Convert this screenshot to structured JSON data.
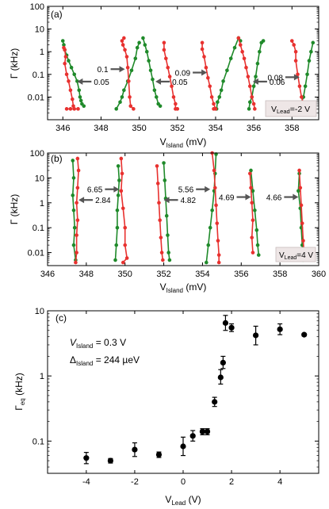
{
  "chart_data": [
    {
      "type": "line",
      "panel_label": "(a)",
      "xlabel_main": "V",
      "xlabel_sub": "Island",
      "xlabel_unit": " (mV)",
      "ylabel": "Γ (kHz)",
      "xlim": [
        345.2,
        359.4
      ],
      "ylim": [
        0.001,
        100
      ],
      "yscale": "log",
      "xticks": [
        346,
        348,
        350,
        352,
        354,
        356,
        358
      ],
      "yticks": [
        {
          "v": 0.01,
          "label": "0.01"
        },
        {
          "v": 0.1,
          "label": "0.1"
        },
        {
          "v": 1,
          "label": "1"
        },
        {
          "v": 10,
          "label": "10"
        },
        {
          "v": 100,
          "label": "100"
        }
      ],
      "legend_box": {
        "main": "V",
        "sub": "Lead",
        "value": "=-2 V"
      },
      "colors": {
        "red": "#e8312f",
        "green": "#1f8a2a"
      },
      "peaks": [
        {
          "red": {
            "x": [
              346.05,
              346.1,
              346.15,
              346.1,
              346.2,
              346.3,
              346.4,
              346.5,
              346.55,
              346.6,
              346.8,
              346.4,
              346.2
            ],
            "y": [
              1.5,
              1.2,
              0.6,
              0.3,
              0.1,
              0.05,
              0.02,
              0.008,
              0.004,
              0.003,
              0.003,
              0.003,
              0.003
            ]
          },
          "green": {
            "x": [
              346.0,
              346.05,
              346.1,
              346.2,
              346.3,
              346.45,
              346.6,
              346.75,
              346.85,
              346.9,
              346.95,
              347.0,
              347.1
            ],
            "y": [
              3,
              2,
              1.2,
              0.7,
              0.4,
              0.2,
              0.1,
              0.05,
              0.02,
              0.01,
              0.007,
              0.005,
              0.004
            ]
          }
        },
        {
          "red": {
            "x": [
              349.2,
              349.1,
              349.15,
              349.25,
              349.35,
              349.4,
              349.45,
              349.5,
              349.55,
              349.7
            ],
            "y": [
              4,
              3,
              2,
              1.2,
              0.6,
              0.2,
              0.05,
              0.01,
              0.004,
              0.003
            ]
          },
          "green": {
            "x": [
              348.8,
              349.0,
              349.1,
              349.2,
              349.4,
              349.6,
              349.8,
              349.9,
              350.0
            ],
            "y": [
              0.003,
              0.006,
              0.01,
              0.02,
              0.05,
              0.15,
              0.5,
              1.5,
              2.5
            ]
          }
        },
        {
          "red": {
            "x": [
              351.3,
              351.3,
              351.4,
              351.5,
              351.6,
              351.7,
              351.8,
              351.9,
              351.9,
              352.0
            ],
            "y": [
              2.5,
              1.2,
              0.5,
              0.2,
              0.08,
              0.03,
              0.01,
              0.005,
              0.003,
              0.003
            ]
          },
          "green": {
            "x": [
              350.2,
              350.3,
              350.4,
              350.5,
              350.6,
              350.7,
              350.8,
              350.9,
              351.0,
              351.1
            ],
            "y": [
              4,
              2,
              1,
              0.4,
              0.15,
              0.06,
              0.02,
              0.01,
              0.005,
              0.004
            ]
          }
        },
        {
          "red": {
            "x": [
              353.3,
              353.3,
              353.4,
              353.5,
              353.6,
              353.7,
              353.8,
              353.9,
              354.0,
              353.9
            ],
            "y": [
              2.5,
              1.3,
              0.6,
              0.2,
              0.07,
              0.03,
              0.01,
              0.005,
              0.003,
              0.003
            ]
          },
          "green": {
            "x": [
              354.05,
              354.1,
              354.2,
              354.3,
              354.4,
              354.6,
              354.8,
              355.0,
              355.2,
              355.3
            ],
            "y": [
              0.003,
              0.006,
              0.01,
              0.02,
              0.05,
              0.15,
              0.5,
              1.5,
              4,
              3
            ]
          }
        },
        {
          "red": {
            "x": [
              355.2,
              355.3,
              355.4,
              355.5,
              355.6,
              355.7,
              355.8,
              355.9,
              356.0,
              356.05
            ],
            "y": [
              4,
              2,
              1,
              0.5,
              0.2,
              0.08,
              0.03,
              0.01,
              0.005,
              0.003
            ]
          },
          "green": {
            "x": [
              355.75,
              355.8,
              355.9,
              356.0,
              356.1,
              356.2,
              356.3,
              356.4,
              356.5
            ],
            "y": [
              0.003,
              0.006,
              0.01,
              0.03,
              0.08,
              0.3,
              1,
              2.5,
              3
            ]
          }
        },
        {
          "red": {
            "x": [
              358.0,
              358.1,
              358.2,
              358.2,
              358.3,
              358.4,
              358.5,
              358.6,
              358.7
            ],
            "y": [
              3,
              2,
              1,
              0.4,
              0.1,
              0.03,
              0.01,
              0.005,
              0.003
            ]
          },
          "green": {
            "x": [
              358.4,
              358.5,
              358.6,
              358.7,
              358.8,
              358.9,
              359.0,
              359.1
            ],
            "y": [
              0.003,
              0.006,
              0.01,
              0.03,
              0.1,
              0.4,
              1,
              2.5
            ]
          }
        }
      ],
      "annotations": [
        {
          "text": "0.05",
          "x": 346.75,
          "y": 0.048,
          "dir": "left"
        },
        {
          "text": "0.1",
          "x": 349.25,
          "y": 0.17,
          "dir": "right"
        },
        {
          "text": "0.05",
          "x": 350.85,
          "y": 0.048,
          "dir": "left"
        },
        {
          "text": "0.09",
          "x": 353.55,
          "y": 0.12,
          "dir": "right"
        },
        {
          "text": "0.06",
          "x": 355.95,
          "y": 0.048,
          "dir": "left"
        },
        {
          "text": "0.08",
          "x": 358.4,
          "y": 0.075,
          "dir": "right"
        }
      ]
    },
    {
      "type": "line",
      "panel_label": "(b)",
      "xlabel_main": "V",
      "xlabel_sub": "Island",
      "xlabel_unit": " (mV)",
      "ylabel": "Γ (kHz)",
      "xlim": [
        346,
        360
      ],
      "ylim": [
        0.003,
        100
      ],
      "yscale": "log",
      "xticks": [
        346,
        348,
        350,
        352,
        354,
        356,
        358,
        360
      ],
      "yticks": [
        {
          "v": 0.01,
          "label": "0.01"
        },
        {
          "v": 0.1,
          "label": "0.1"
        },
        {
          "v": 1,
          "label": "1"
        },
        {
          "v": 10,
          "label": "10"
        },
        {
          "v": 100,
          "label": "100"
        }
      ],
      "legend_box": {
        "main": "V",
        "sub": "Lead",
        "value": "=4 V"
      },
      "colors": {
        "red": "#e8312f",
        "green": "#1f8a2a"
      },
      "peaks": [
        {
          "red": {
            "x": [
              347.45,
              347.5,
              347.5,
              347.55,
              347.5,
              347.55,
              347.6,
              347.55
            ],
            "y": [
              0.004,
              0.01,
              0.05,
              0.2,
              1,
              4,
              20,
              60
            ]
          },
          "green": {
            "x": [
              347.3,
              347.35,
              347.3,
              347.35,
              347.4,
              347.35,
              347.45
            ],
            "y": [
              50,
              10,
              2,
              0.5,
              0.1,
              0.02,
              0.005
            ]
          }
        },
        {
          "red": {
            "x": [
              349.8,
              349.85,
              349.8,
              349.9,
              350.0,
              350.0,
              350.1,
              349.9
            ],
            "y": [
              60,
              15,
              3,
              0.6,
              0.1,
              0.02,
              0.006,
              0.004
            ]
          },
          "green": {
            "x": [
              349.5,
              349.55,
              349.6,
              349.6,
              349.65,
              349.7,
              349.65
            ],
            "y": [
              0.005,
              0.02,
              0.1,
              0.5,
              2,
              8,
              30
            ]
          }
        },
        {
          "red": {
            "x": [
              351.65,
              351.7,
              351.75,
              351.8,
              351.85,
              351.9,
              351.95
            ],
            "y": [
              30,
              6,
              1,
              0.2,
              0.04,
              0.01,
              0.005
            ]
          },
          "green": {
            "x": [
              352.0,
              352.05,
              352.1,
              352.15,
              352.2,
              352.25,
              352.3
            ],
            "y": [
              40,
              8,
              1.5,
              0.3,
              0.05,
              0.01,
              0.005
            ]
          }
        },
        {
          "red": {
            "x": [
              354.5,
              354.6,
              354.65,
              354.7,
              354.75,
              354.8,
              354.85,
              354.85
            ],
            "y": [
              100,
              20,
              4,
              0.8,
              0.15,
              0.03,
              0.008,
              0.004
            ]
          },
          "green": {
            "x": [
              354.2,
              354.3,
              354.4,
              354.5,
              354.6,
              354.65,
              354.7
            ],
            "y": [
              0.004,
              0.02,
              0.1,
              0.5,
              3,
              15,
              90
            ]
          }
        },
        {
          "red": {
            "x": [
              356.45,
              356.5,
              356.55,
              356.6,
              356.55,
              356.6
            ],
            "y": [
              15,
              4,
              1,
              0.2,
              0.04,
              0.01
            ]
          },
          "green": {
            "x": [
              356.5,
              356.6,
              356.7,
              356.8,
              356.85,
              356.9
            ],
            "y": [
              20,
              3,
              0.5,
              0.08,
              0.02,
              0.008
            ]
          }
        },
        {
          "red": {
            "x": [
              359.0,
              359.05,
              359.1,
              359.15,
              359.2,
              359.25
            ],
            "y": [
              20,
              4,
              0.8,
              0.15,
              0.03,
              0.008
            ]
          },
          "green": {
            "x": [
              359.0,
              358.95,
              359.05,
              359.1,
              359.15,
              359.2
            ],
            "y": [
              15,
              3,
              0.6,
              0.1,
              0.02,
              0.005
            ]
          }
        }
      ],
      "annotations": [
        {
          "text": "2.84",
          "x": 347.6,
          "y": 1.3,
          "dir": "left"
        },
        {
          "text": "6.65",
          "x": 349.7,
          "y": 3.5,
          "dir": "right"
        },
        {
          "text": "4.82",
          "x": 352.0,
          "y": 1.3,
          "dir": "left"
        },
        {
          "text": "5.56",
          "x": 354.4,
          "y": 3.5,
          "dir": "right"
        },
        {
          "text": "4.69",
          "x": 356.5,
          "y": 1.7,
          "dir": "right"
        },
        {
          "text": "4.66",
          "x": 358.95,
          "y": 1.7,
          "dir": "right"
        }
      ]
    },
    {
      "type": "scatter",
      "panel_label": "(c)",
      "xlabel_main": "V",
      "xlabel_sub": "Lead",
      "xlabel_unit": " (V)",
      "ylabel_main": "Γ",
      "ylabel_sub": "eq",
      "ylabel_unit": " (kHz)",
      "xlim": [
        -5.6,
        5.6
      ],
      "ylim": [
        0.032,
        10
      ],
      "yscale": "log",
      "xticks": [
        -4,
        -2,
        0,
        2,
        4
      ],
      "yticks": [
        {
          "v": 0.1,
          "label": "0.1"
        },
        {
          "v": 1,
          "label": "1"
        },
        {
          "v": 10,
          "label": "10"
        }
      ],
      "text_lines": [
        {
          "main": "V",
          "sub": "Island",
          "rest": " = 0.3 V"
        },
        {
          "main": "Δ",
          "sub": "Island",
          "rest": " = 244 µeV"
        }
      ],
      "points": [
        {
          "x": -4,
          "y": 0.055,
          "lo": 0.045,
          "hi": 0.067
        },
        {
          "x": -3,
          "y": 0.05,
          "lo": 0.046,
          "hi": 0.054
        },
        {
          "x": -2,
          "y": 0.074,
          "lo": 0.058,
          "hi": 0.094
        },
        {
          "x": -1,
          "y": 0.062,
          "lo": 0.056,
          "hi": 0.068
        },
        {
          "x": 0,
          "y": 0.083,
          "lo": 0.06,
          "hi": 0.115
        },
        {
          "x": 0.4,
          "y": 0.12,
          "lo": 0.1,
          "hi": 0.145
        },
        {
          "x": 0.8,
          "y": 0.14,
          "lo": 0.125,
          "hi": 0.155
        },
        {
          "x": 1.0,
          "y": 0.14,
          "lo": 0.125,
          "hi": 0.155
        },
        {
          "x": 1.3,
          "y": 0.4,
          "lo": 0.34,
          "hi": 0.47
        },
        {
          "x": 1.55,
          "y": 0.95,
          "lo": 0.75,
          "hi": 1.25
        },
        {
          "x": 1.65,
          "y": 1.6,
          "lo": 1.3,
          "hi": 2.0
        },
        {
          "x": 1.75,
          "y": 6.5,
          "lo": 5.0,
          "hi": 8.5
        },
        {
          "x": 2.0,
          "y": 5.5,
          "lo": 4.8,
          "hi": 6.3
        },
        {
          "x": 3.0,
          "y": 4.2,
          "lo": 3.0,
          "hi": 5.8
        },
        {
          "x": 4.0,
          "y": 5.2,
          "lo": 4.3,
          "hi": 6.3
        },
        {
          "x": 5.0,
          "y": 4.3,
          "lo": 4.1,
          "hi": 4.5
        }
      ]
    }
  ]
}
